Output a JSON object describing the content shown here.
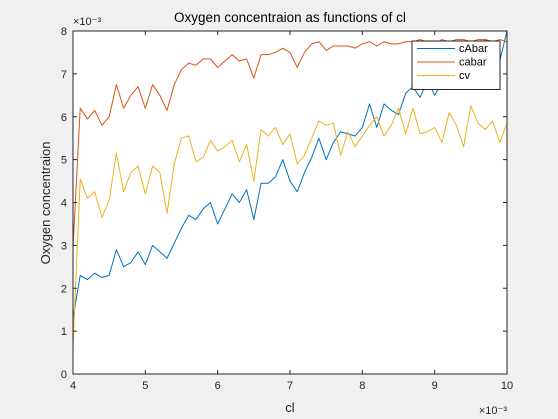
{
  "figure": {
    "background_color": "#f0f0f0",
    "axes_color": "#ffffff"
  },
  "chart_data": {
    "type": "line",
    "title": "Oxygen concentraion as functions of cl",
    "xlabel": "cl",
    "ylabel": "Oxygen concentraion",
    "x_exponent_label": "×10⁻³",
    "y_exponent_label": "×10⁻³",
    "xlim": [
      4,
      10
    ],
    "ylim": [
      0,
      8
    ],
    "xticks": [
      4,
      5,
      6,
      7,
      8,
      9,
      10
    ],
    "yticks": [
      0,
      1,
      2,
      3,
      4,
      5,
      6,
      7,
      8
    ],
    "grid": false,
    "legend_position": "top-right",
    "x": [
      4.0,
      4.1,
      4.2,
      4.3,
      4.4,
      4.5,
      4.6,
      4.7,
      4.8,
      4.9,
      5.0,
      5.1,
      5.2,
      5.3,
      5.4,
      5.5,
      5.6,
      5.7,
      5.8,
      5.9,
      6.0,
      6.1,
      6.2,
      6.3,
      6.4,
      6.5,
      6.6,
      6.7,
      6.8,
      6.9,
      7.0,
      7.1,
      7.2,
      7.3,
      7.4,
      7.5,
      7.6,
      7.7,
      7.8,
      7.9,
      8.0,
      8.1,
      8.2,
      8.3,
      8.4,
      8.5,
      8.6,
      8.7,
      8.8,
      8.9,
      9.0,
      9.1,
      9.2,
      9.3,
      9.4,
      9.5,
      9.6,
      9.7,
      9.8,
      9.9,
      10.0
    ],
    "series": [
      {
        "name": "cAbar",
        "color": "#0072bd",
        "values": [
          1.3,
          2.3,
          2.2,
          2.35,
          2.25,
          2.3,
          2.9,
          2.5,
          2.6,
          2.85,
          2.55,
          3.0,
          2.85,
          2.7,
          3.05,
          3.4,
          3.7,
          3.6,
          3.85,
          4.0,
          3.5,
          3.85,
          4.2,
          4.0,
          4.3,
          3.6,
          4.45,
          4.45,
          4.6,
          5.0,
          4.5,
          4.25,
          4.7,
          5.05,
          5.5,
          5.0,
          5.4,
          5.65,
          5.6,
          5.55,
          5.75,
          6.3,
          5.75,
          6.3,
          6.15,
          6.05,
          6.55,
          6.7,
          6.45,
          6.85,
          6.5,
          6.8,
          6.9,
          7.0,
          7.05,
          7.3,
          7.6,
          7.8,
          7.75,
          7.3,
          8.0
        ]
      },
      {
        "name": "cabar",
        "color": "#d95319",
        "values": [
          2.95,
          6.2,
          5.95,
          6.15,
          5.8,
          6.0,
          6.75,
          6.2,
          6.5,
          6.7,
          6.2,
          6.75,
          6.5,
          6.15,
          6.75,
          7.1,
          7.25,
          7.2,
          7.35,
          7.35,
          7.15,
          7.3,
          7.45,
          7.3,
          7.35,
          6.9,
          7.45,
          7.45,
          7.5,
          7.6,
          7.5,
          7.15,
          7.5,
          7.7,
          7.75,
          7.55,
          7.65,
          7.65,
          7.65,
          7.6,
          7.7,
          7.75,
          7.65,
          7.75,
          7.7,
          7.7,
          7.75,
          7.75,
          7.8,
          7.75,
          7.7,
          7.8,
          7.75,
          7.8,
          7.8,
          7.75,
          7.8,
          7.8,
          7.75,
          7.8,
          7.75
        ]
      },
      {
        "name": "cv",
        "color": "#edb120",
        "values": [
          0.65,
          4.55,
          4.1,
          4.25,
          3.65,
          4.05,
          5.15,
          4.25,
          4.7,
          4.85,
          4.2,
          4.85,
          4.7,
          3.75,
          4.9,
          5.5,
          5.55,
          4.95,
          5.05,
          5.45,
          5.2,
          5.3,
          5.45,
          4.95,
          5.35,
          4.5,
          5.7,
          5.55,
          5.75,
          5.35,
          5.6,
          4.9,
          5.1,
          5.5,
          5.9,
          5.8,
          5.85,
          5.1,
          5.65,
          5.3,
          5.55,
          5.8,
          6.0,
          5.55,
          5.8,
          6.2,
          5.6,
          6.2,
          5.6,
          5.65,
          5.75,
          5.4,
          6.1,
          5.8,
          5.3,
          6.25,
          5.85,
          5.7,
          5.9,
          5.4,
          5.85
        ]
      }
    ]
  }
}
